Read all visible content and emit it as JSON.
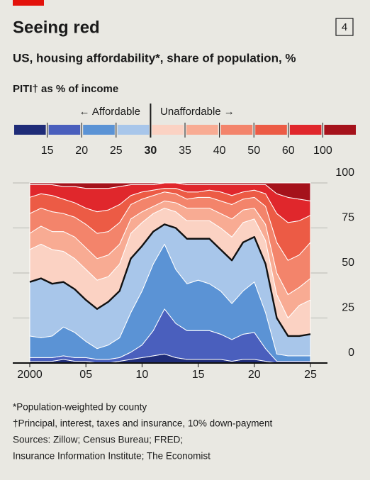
{
  "chart_data": {
    "type": "stacked-area",
    "badge": "4",
    "title": "Seeing red",
    "subtitle": "US, housing affordability*, share of population, %",
    "legend_title": "PITI† as % of income",
    "legend_left": "← Affordable",
    "legend_right": "Unaffordable →",
    "legend_ticks": [
      15,
      20,
      25,
      30,
      35,
      40,
      50,
      60,
      100
    ],
    "divider": 30,
    "x": [
      2000,
      2001,
      2002,
      2003,
      2004,
      2005,
      2006,
      2007,
      2008,
      2009,
      2010,
      2011,
      2012,
      2013,
      2014,
      2015,
      2016,
      2017,
      2018,
      2019,
      2020,
      2021,
      2022,
      2023,
      2024,
      2025
    ],
    "xlim": [
      2000,
      2025
    ],
    "xticks": [
      2000,
      {
        "value": 2005,
        "label": "05"
      },
      {
        "value": 2010,
        "label": "10"
      },
      {
        "value": 2015,
        "label": "15"
      },
      {
        "value": 2020,
        "label": "20"
      },
      {
        "value": 2025,
        "label": "25"
      }
    ],
    "ylim": [
      0,
      100
    ],
    "yticks": [
      0,
      25,
      50,
      75,
      100
    ],
    "grid": true,
    "series": [
      {
        "color": "#1f2c78",
        "values": [
          1,
          1,
          1,
          2,
          1,
          1,
          0,
          0,
          1,
          2,
          3,
          4,
          5,
          3,
          2,
          2,
          2,
          2,
          1,
          2,
          2,
          1,
          0,
          0,
          0,
          0
        ]
      },
      {
        "color": "#4a5fbd",
        "values": [
          2,
          2,
          2,
          2,
          2,
          2,
          2,
          2,
          2,
          4,
          7,
          14,
          25,
          19,
          16,
          16,
          16,
          14,
          12,
          14,
          15,
          7,
          1,
          1,
          1,
          1
        ]
      },
      {
        "color": "#5b93d5",
        "values": [
          12,
          11,
          12,
          16,
          14,
          9,
          6,
          8,
          11,
          22,
          30,
          37,
          36,
          30,
          26,
          28,
          26,
          24,
          20,
          24,
          28,
          20,
          4,
          3,
          3,
          3
        ]
      },
      {
        "color": "#a8c6ea",
        "values": [
          30,
          33,
          29,
          25,
          24,
          23,
          22,
          24,
          26,
          30,
          25,
          18,
          11,
          23,
          25,
          23,
          25,
          23,
          24,
          27,
          25,
          27,
          20,
          11,
          11,
          12
        ]
      },
      {
        "color": "#fbd2c3",
        "values": [
          18,
          19,
          19,
          17,
          17,
          17,
          16,
          14,
          15,
          14,
          13,
          10,
          9,
          9,
          10,
          10,
          10,
          12,
          13,
          11,
          10,
          13,
          13,
          10,
          17,
          19
        ]
      },
      {
        "color": "#f8ab93",
        "values": [
          9,
          10,
          10,
          11,
          12,
          12,
          12,
          12,
          11,
          8,
          6,
          4,
          4,
          5,
          7,
          7,
          7,
          8,
          10,
          7,
          6,
          9,
          12,
          13,
          10,
          12
        ]
      },
      {
        "color": "#f3846b",
        "values": [
          11,
          10,
          11,
          10,
          11,
          13,
          14,
          13,
          12,
          8,
          7,
          6,
          5,
          5,
          5,
          6,
          6,
          7,
          8,
          6,
          6,
          10,
          17,
          19,
          18,
          20
        ]
      },
      {
        "color": "#ec5b45",
        "values": [
          9,
          8,
          9,
          8,
          8,
          9,
          12,
          12,
          10,
          5,
          4,
          3,
          2,
          3,
          4,
          3,
          4,
          5,
          5,
          4,
          4,
          7,
          16,
          21,
          19,
          15
        ]
      },
      {
        "color": "#e0272c",
        "values": [
          7,
          5,
          6,
          7,
          9,
          11,
          13,
          12,
          10,
          6,
          4,
          3,
          3,
          3,
          4,
          4,
          3,
          4,
          6,
          4,
          3,
          5,
          11,
          14,
          12,
          8
        ]
      },
      {
        "color": "#a5121b",
        "values": [
          1,
          1,
          1,
          2,
          2,
          3,
          3,
          3,
          2,
          1,
          1,
          1,
          0,
          0,
          1,
          1,
          1,
          1,
          1,
          1,
          1,
          1,
          6,
          8,
          9,
          10
        ]
      }
    ],
    "notes": [
      "*Population-weighted by county",
      "†Principal, interest, taxes and insurance, 10% down-payment",
      "Sources: Zillow; Census Bureau; FRED;",
      "Insurance Information Institute; The Economist"
    ]
  }
}
